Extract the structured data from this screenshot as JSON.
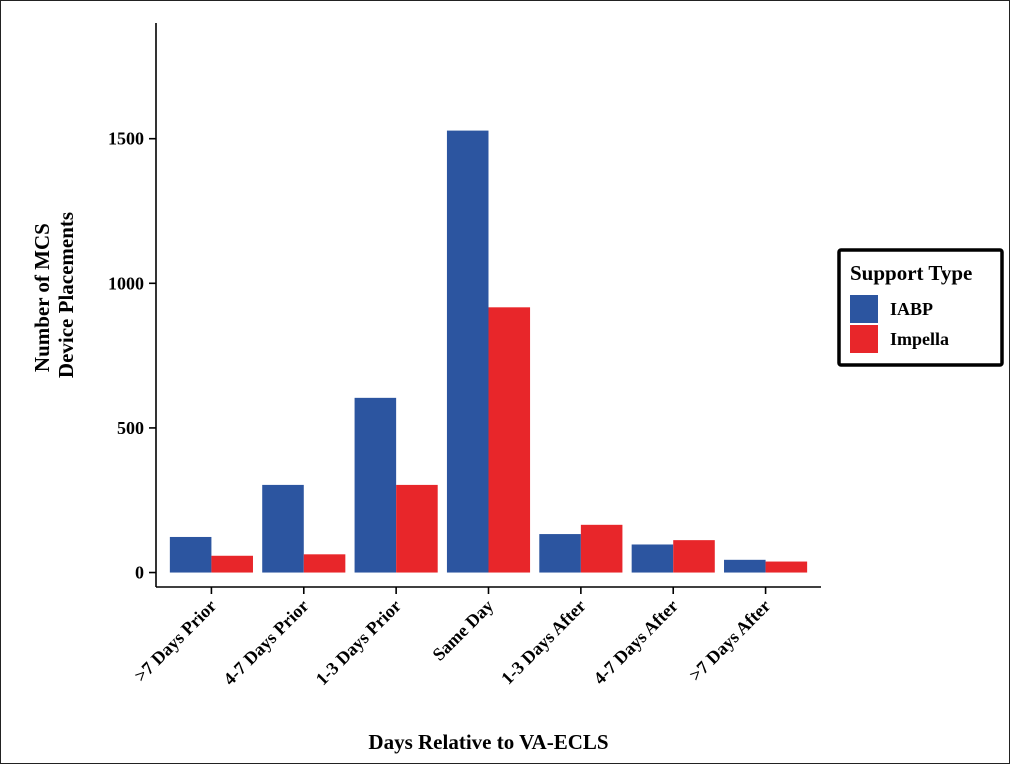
{
  "chart_data": {
    "type": "bar",
    "xlabel": "Days Relative to VA-ECLS",
    "ylabel_lines": [
      "Number of MCS",
      "Device Placements"
    ],
    "categories": [
      ">7 Days Prior",
      "4-7 Days Prior",
      "1-3 Days Prior",
      "Same Day",
      "1-3 Days After",
      "4-7 Days After",
      ">7 Days After"
    ],
    "series": [
      {
        "name": "IABP",
        "color": "#2C55A0",
        "values": [
          123,
          303,
          604,
          1528,
          133,
          97,
          44
        ]
      },
      {
        "name": "Impella",
        "color": "#E8262A",
        "values": [
          58,
          63,
          303,
          917,
          165,
          112,
          38
        ]
      }
    ],
    "yticks": [
      0,
      500,
      1000,
      1500
    ],
    "ylim": [
      -50,
      1900
    ],
    "legend": {
      "title": "Support Type",
      "position": "right"
    },
    "grid": false
  }
}
